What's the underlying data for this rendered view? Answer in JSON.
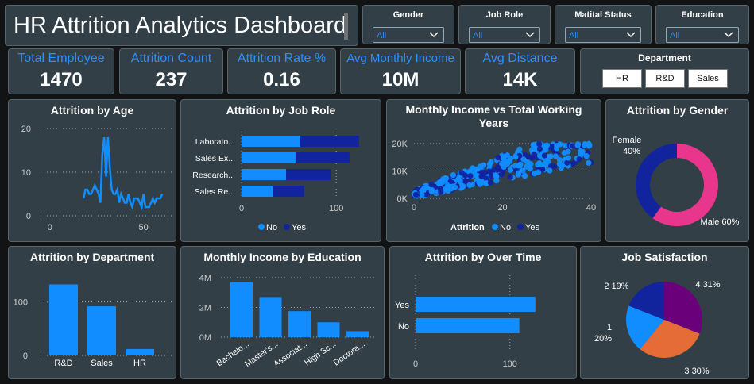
{
  "title": "HR Attrition Analytics Dashboard",
  "filters": [
    {
      "label": "Gender",
      "value": "All"
    },
    {
      "label": "Job Role",
      "value": "All"
    },
    {
      "label": "Matital Status",
      "value": "All"
    },
    {
      "label": "Education",
      "value": "All"
    }
  ],
  "kpis": [
    {
      "label": "Total Employee",
      "value": "1470"
    },
    {
      "label": "Attrition Count",
      "value": "237"
    },
    {
      "label": "Attrition Rate %",
      "value": "0.16"
    },
    {
      "label": "Avg Monthly Income",
      "value": "10M"
    },
    {
      "label": "Avg Distance",
      "value": "14K"
    }
  ],
  "department_slicer": {
    "title": "Department",
    "options": [
      "HR",
      "R&D",
      "Sales"
    ]
  },
  "colors": {
    "no": "#118dff",
    "yes": "#12239e",
    "male": "#e8368c",
    "purple": "#6b007b",
    "orange": "#e66c37"
  },
  "chart_data": [
    {
      "id": "age",
      "type": "line",
      "title": "Attrition by Age",
      "x": [
        18,
        19,
        20,
        21,
        22,
        23,
        24,
        25,
        26,
        27,
        28,
        29,
        30,
        31,
        32,
        33,
        34,
        35,
        36,
        37,
        38,
        39,
        40,
        41,
        42,
        43,
        44,
        45,
        46,
        47,
        48,
        49,
        50,
        51,
        52,
        53,
        54,
        55,
        56,
        57,
        58,
        59,
        60
      ],
      "y": [
        4,
        6,
        6,
        5,
        5,
        6,
        7,
        6,
        5,
        3,
        14,
        18,
        9,
        18,
        11,
        6,
        5,
        5,
        6,
        3,
        5,
        4,
        3,
        3,
        5,
        3,
        2,
        4,
        4,
        4,
        3,
        2,
        5,
        2,
        2,
        2,
        3,
        4,
        3,
        4,
        4,
        4,
        5
      ],
      "xticks": [
        "0",
        "50"
      ],
      "yticks": [
        "0",
        "10",
        "20"
      ],
      "xlim": [
        -5,
        65
      ],
      "ylim": [
        0,
        20
      ]
    },
    {
      "id": "jobrole",
      "type": "bar",
      "title": "Attrition by Job Role",
      "categories": [
        "Laborato...",
        "Sales Ex...",
        "Research...",
        "Sales Re..."
      ],
      "series": [
        {
          "name": "No",
          "values": [
            62,
            57,
            47,
            33
          ]
        },
        {
          "name": "Yes",
          "values": [
            62,
            57,
            47,
            33
          ]
        }
      ],
      "xticks": [
        "0",
        "100"
      ],
      "xlim": [
        0,
        125
      ],
      "legend": {
        "items": [
          "No",
          "Yes"
        ]
      }
    },
    {
      "id": "income_vs_years",
      "type": "scatter",
      "title": "Monthly Income vs Total Working Years",
      "xticks": [
        "0",
        "20",
        "40"
      ],
      "yticks": [
        "0K",
        "10K",
        "20K"
      ],
      "xlim": [
        0,
        40
      ],
      "ylim": [
        0,
        20000
      ],
      "legend": {
        "title": "Attrition",
        "items": [
          "No",
          "Yes"
        ]
      }
    },
    {
      "id": "gender",
      "type": "pie",
      "title": "Attrition by Gender",
      "categories": [
        "Female",
        "Male"
      ],
      "values": [
        40,
        60
      ],
      "labels": [
        "Female\n40%",
        "Male 60%"
      ]
    },
    {
      "id": "department",
      "type": "bar",
      "title": "Attrition by Department",
      "categories": [
        "R&D",
        "Sales",
        "HR"
      ],
      "values": [
        133,
        92,
        12
      ],
      "yticks": [
        "0",
        "100"
      ],
      "ylim": [
        0,
        150
      ]
    },
    {
      "id": "education",
      "type": "bar",
      "title": "Monthly Income by Education",
      "categories": [
        "Bachelo...",
        "Master's...",
        "Associat...",
        "High Sc...",
        "Doctora..."
      ],
      "values": [
        3700000,
        2700000,
        1750000,
        1000000,
        400000
      ],
      "yticks": [
        "0M",
        "2M",
        "4M"
      ],
      "ylim": [
        0,
        4000000
      ]
    },
    {
      "id": "overtime",
      "type": "bar",
      "title": "Attrition by Over Time",
      "categories": [
        "Yes",
        "No"
      ],
      "values": [
        127,
        110
      ],
      "xticks": [
        "0",
        "100"
      ],
      "xlim": [
        0,
        160
      ]
    },
    {
      "id": "satisfaction",
      "type": "pie",
      "title": "Job Satisfaction",
      "categories": [
        "4",
        "3",
        "1",
        "2"
      ],
      "values": [
        31,
        30,
        20,
        19
      ],
      "labels": [
        "4 31%",
        "3 30%",
        "1\n20%",
        "2 19%"
      ]
    }
  ]
}
